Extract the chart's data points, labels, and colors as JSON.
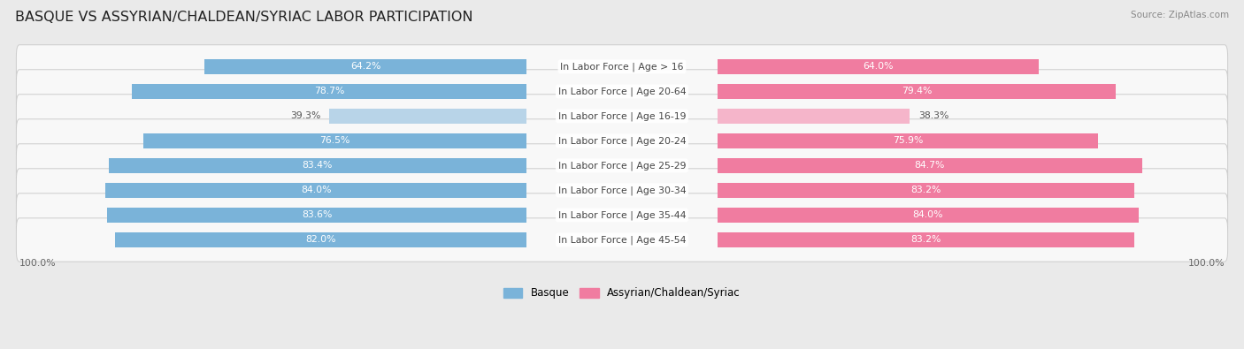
{
  "title": "BASQUE VS ASSYRIAN/CHALDEAN/SYRIAC LABOR PARTICIPATION",
  "source": "Source: ZipAtlas.com",
  "categories": [
    "In Labor Force | Age > 16",
    "In Labor Force | Age 20-64",
    "In Labor Force | Age 16-19",
    "In Labor Force | Age 20-24",
    "In Labor Force | Age 25-29",
    "In Labor Force | Age 30-34",
    "In Labor Force | Age 35-44",
    "In Labor Force | Age 45-54"
  ],
  "basque_values": [
    64.2,
    78.7,
    39.3,
    76.5,
    83.4,
    84.0,
    83.6,
    82.0
  ],
  "assyrian_values": [
    64.0,
    79.4,
    38.3,
    75.9,
    84.7,
    83.2,
    84.0,
    83.2
  ],
  "basque_color": "#7ab3d9",
  "basque_color_light": "#b8d4e8",
  "assyrian_color": "#f07ca0",
  "assyrian_color_light": "#f5b5ca",
  "background_color": "#eaeaea",
  "row_bg_color": "#f8f8f8",
  "row_border_color": "#cccccc",
  "title_fontsize": 11.5,
  "label_fontsize": 7.8,
  "value_fontsize": 7.8,
  "legend_fontsize": 8.5,
  "source_fontsize": 7.5,
  "x_label": "100.0%"
}
